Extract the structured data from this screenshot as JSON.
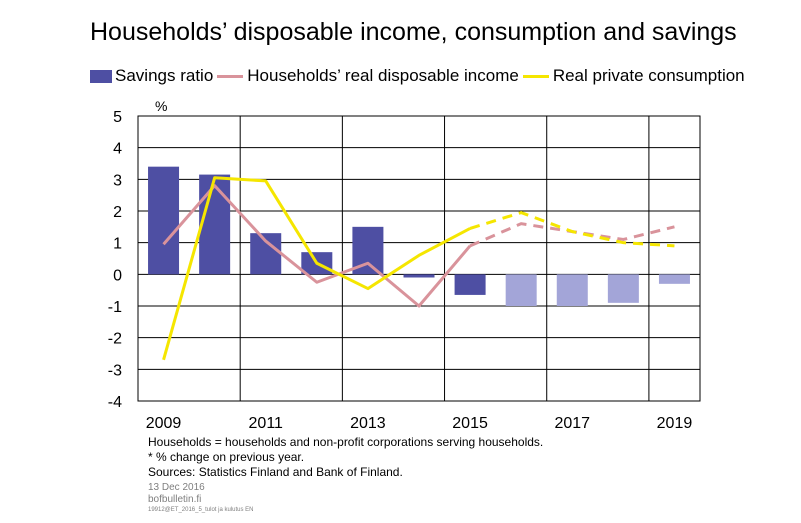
{
  "chart_data": {
    "type": "bar",
    "title": "Households’ disposable income, consumption and savings",
    "ylabel": "%",
    "ylim": [
      -4,
      5
    ],
    "yticks": [
      "5",
      "4",
      "3",
      "2",
      "1",
      "0",
      "-1",
      "-2",
      "-3",
      "-4"
    ],
    "x": [
      2009,
      2010,
      2011,
      2012,
      2013,
      2014,
      2015,
      2016,
      2017,
      2018,
      2019
    ],
    "xtick_labels": [
      "2009",
      "2011",
      "2013",
      "2015",
      "2017",
      "2019"
    ],
    "grid": true,
    "legend_position": "top",
    "forecast_from": 2016,
    "series": [
      {
        "name": "Savings ratio",
        "kind": "bar",
        "color": "#4e4fa3",
        "forecast_color": "#a3a5d8",
        "values": [
          3.4,
          3.15,
          1.3,
          0.7,
          1.5,
          -0.1,
          -0.65,
          -1.0,
          -1.0,
          -0.9,
          -0.3
        ]
      },
      {
        "name": "Households’ real disposable income",
        "kind": "line",
        "color": "#d9939b",
        "values": [
          0.95,
          2.8,
          1.05,
          -0.25,
          0.35,
          -1.0,
          0.9,
          1.6,
          1.35,
          1.1,
          1.5
        ]
      },
      {
        "name": "Real private consumption",
        "kind": "line",
        "color": "#f5e600",
        "values": [
          -2.7,
          3.05,
          2.95,
          0.35,
          -0.45,
          0.6,
          1.45,
          1.95,
          1.35,
          1.0,
          0.9
        ]
      }
    ]
  },
  "notes": {
    "line1": "Households = households and non-profit corporations serving households.",
    "line2": "* % change on previous year.",
    "line3": "Sources: Statistics Finland and Bank of Finland."
  },
  "footer": {
    "date": "13 Dec 2016",
    "site": "bofbulletin.fi",
    "code": "19912@ET_2016_5_tulot  ja kulutus EN"
  }
}
